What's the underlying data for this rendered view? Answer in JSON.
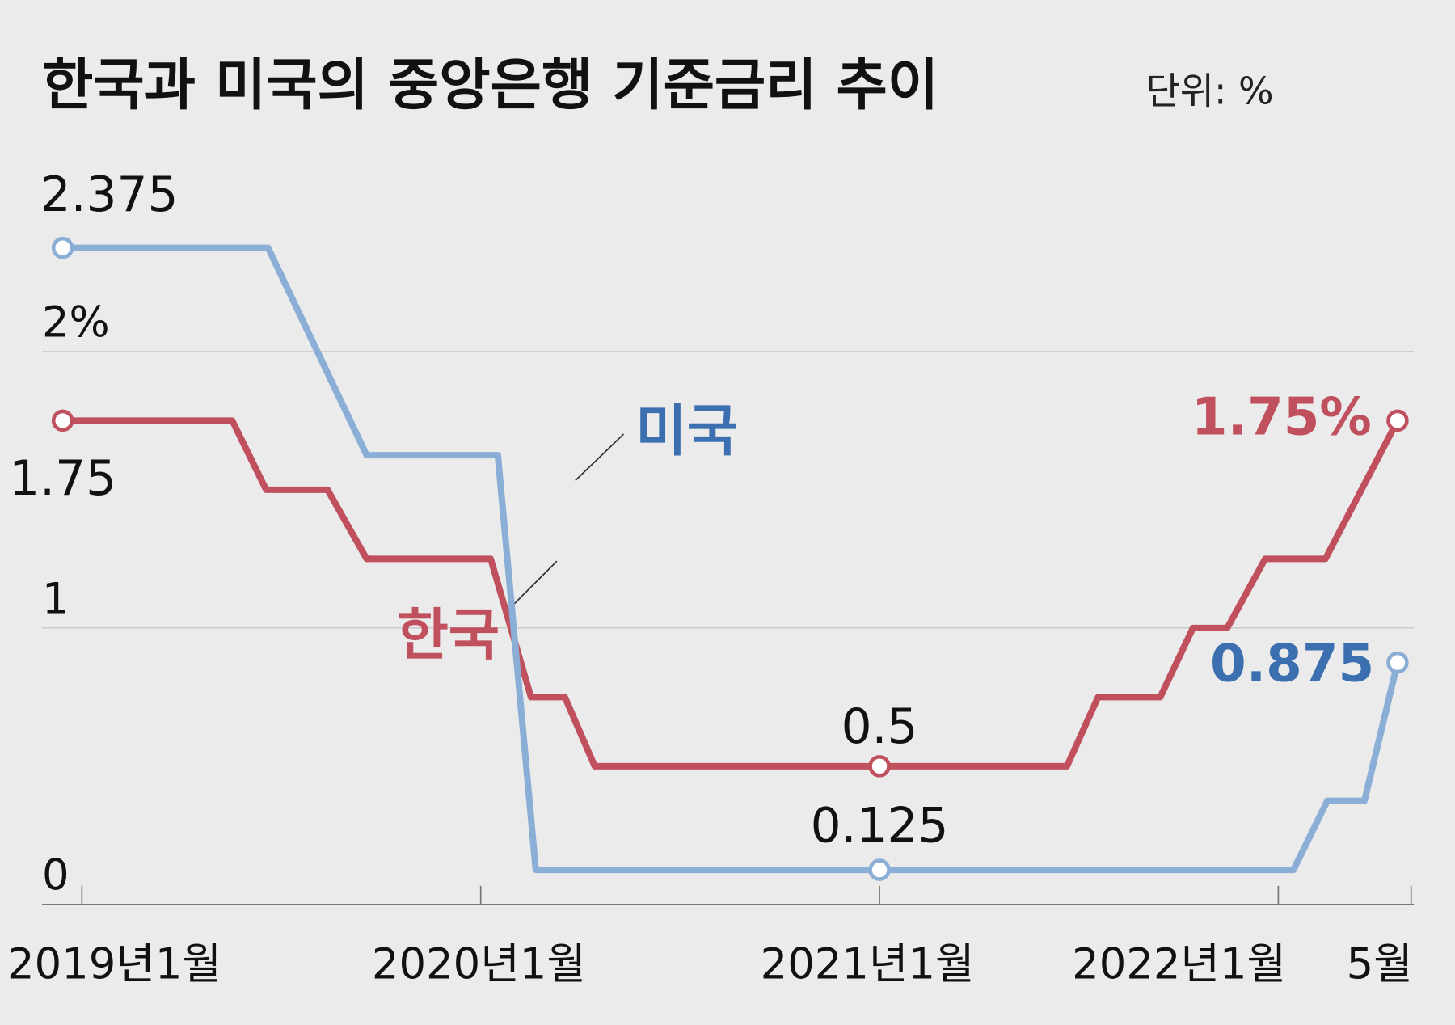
{
  "chart_data": {
    "type": "line",
    "title": "한국과 미국의 중앙은행 기준금리 추이",
    "unit": "단위: %",
    "xlim": [
      2018.9,
      2022.34
    ],
    "xticks": [
      {
        "value": 2019,
        "label": "2019년1월"
      },
      {
        "value": 2020,
        "label": "2020년1월"
      },
      {
        "value": 2021,
        "label": "2021년1월"
      },
      {
        "value": 2022,
        "label": "2022년1월"
      },
      {
        "value": 2022.333,
        "label": "5월"
      }
    ],
    "ylim": [
      0,
      2.5
    ],
    "yticks": [
      0,
      1,
      {
        "value": 2,
        "label": "2%"
      }
    ],
    "grid": true,
    "series": [
      {
        "name": "한국",
        "color": "#c0505e",
        "x": [
          2018.952,
          2019.377,
          2019.462,
          2019.616,
          2019.714,
          2020.025,
          2020.126,
          2020.211,
          2020.286,
          2021.0,
          2021.47,
          2021.548,
          2021.704,
          2021.786,
          2021.872,
          2021.967,
          2022.118,
          2022.299
        ],
        "values": [
          1.75,
          1.75,
          1.5,
          1.5,
          1.25,
          1.25,
          0.75,
          0.75,
          0.5,
          0.5,
          0.5,
          0.75,
          0.75,
          1.0,
          1.0,
          1.25,
          1.25,
          1.75
        ],
        "value_labels": [
          "1.75",
          null,
          null,
          null,
          null,
          null,
          null,
          null,
          null,
          "0.5",
          null,
          null,
          null,
          null,
          null,
          null,
          null,
          "1.75%"
        ]
      },
      {
        "name": "미국",
        "color": "#8aaed6",
        "x": [
          2018.952,
          2019.467,
          2019.714,
          2020.043,
          2020.138,
          2021.0,
          2022.038,
          2022.123,
          2022.216,
          2022.299
        ],
        "values": [
          2.375,
          2.375,
          1.625,
          1.625,
          0.125,
          0.125,
          0.125,
          0.375,
          0.375,
          0.875
        ],
        "value_labels": [
          "2.375",
          null,
          null,
          null,
          null,
          "0.125",
          null,
          null,
          null,
          "0.875"
        ]
      }
    ]
  }
}
